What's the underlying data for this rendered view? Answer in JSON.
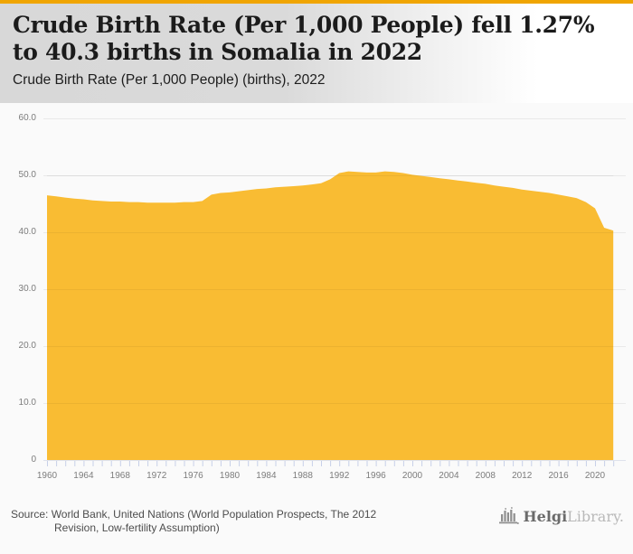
{
  "accent_bar_color": "#f0a502",
  "header": {
    "title": "Crude Birth Rate (Per 1,000 People) fell 1.27% to 40.3 births in Somalia in 2022",
    "subtitle": "Crude Birth Rate (Per 1,000 People) (births), 2022"
  },
  "chart_data": {
    "type": "area",
    "title": "Crude Birth Rate (Per 1,000 People) fell 1.27% to 40.3 births in Somalia in 2022",
    "ylabel": "",
    "xlabel": "",
    "grid": true,
    "legend": false,
    "area_color": "#f9bc33",
    "ylim": [
      0,
      60
    ],
    "yticks": [
      60,
      50,
      40,
      30,
      20,
      10,
      0
    ],
    "ytick_labels": [
      "60.0",
      "50.0",
      "40.0",
      "30.0",
      "20.0",
      "10.0",
      "0"
    ],
    "xtick_labels": [
      "1960",
      "1964",
      "1968",
      "1972",
      "1976",
      "1980",
      "1984",
      "1988",
      "1992",
      "1996",
      "2000",
      "2004",
      "2008",
      "2012",
      "2016",
      "2020"
    ],
    "x": [
      1960,
      1961,
      1962,
      1963,
      1964,
      1965,
      1966,
      1967,
      1968,
      1969,
      1970,
      1971,
      1972,
      1973,
      1974,
      1975,
      1976,
      1977,
      1978,
      1979,
      1980,
      1981,
      1982,
      1983,
      1984,
      1985,
      1986,
      1987,
      1988,
      1989,
      1990,
      1991,
      1992,
      1993,
      1994,
      1995,
      1996,
      1997,
      1998,
      1999,
      2000,
      2001,
      2002,
      2003,
      2004,
      2005,
      2006,
      2007,
      2008,
      2009,
      2010,
      2011,
      2012,
      2013,
      2014,
      2015,
      2016,
      2017,
      2018,
      2019,
      2020,
      2021,
      2022
    ],
    "values": [
      46.5,
      46.3,
      46.1,
      45.9,
      45.8,
      45.6,
      45.5,
      45.4,
      45.4,
      45.3,
      45.3,
      45.2,
      45.2,
      45.2,
      45.2,
      45.3,
      45.3,
      45.5,
      46.6,
      46.9,
      47.0,
      47.2,
      47.4,
      47.6,
      47.7,
      47.9,
      48.0,
      48.1,
      48.2,
      48.4,
      48.6,
      49.3,
      50.4,
      50.7,
      50.6,
      50.5,
      50.5,
      50.7,
      50.6,
      50.4,
      50.1,
      49.9,
      49.7,
      49.5,
      49.3,
      49.1,
      48.9,
      48.7,
      48.5,
      48.2,
      48.0,
      47.8,
      47.5,
      47.3,
      47.1,
      46.9,
      46.6,
      46.3,
      46.0,
      45.3,
      44.2,
      40.8,
      40.3
    ]
  },
  "footer": {
    "source_line1": "Source: World Bank, United Nations (World Population Prospects, The 2012",
    "source_line2": "Revision, Low-fertility Assumption)",
    "logo": {
      "name_primary": "Helgi",
      "name_secondary": "Library."
    }
  }
}
